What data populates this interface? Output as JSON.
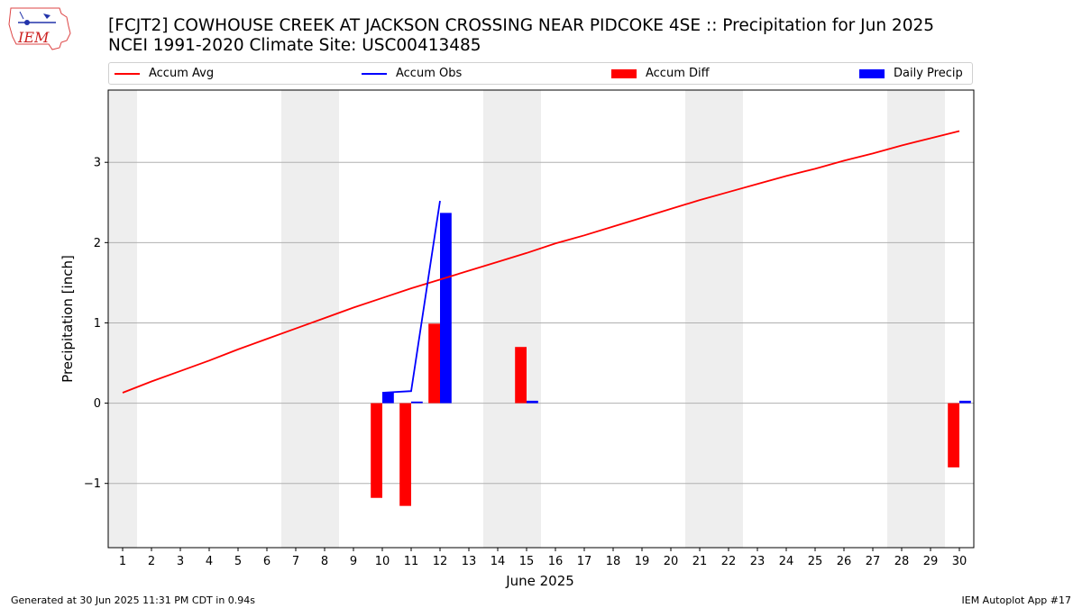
{
  "title_line1": "[FCJT2] COWHOUSE CREEK AT JACKSON CROSSING NEAR PIDCOKE 4SE :: Precipitation for Jun 2025",
  "title_line2": "NCEI 1991-2020 Climate Site: USC00413485",
  "logo_text": "IEM",
  "footer_left": "Generated at 30 Jun 2025 11:31 PM CDT in 0.94s",
  "footer_right": "IEM Autoplot App #17",
  "colors": {
    "avg": "#ff0000",
    "obs": "#0000ff",
    "diff": "#ff0000",
    "daily": "#0000ff",
    "weekend": "#eeeeee",
    "grid": "#b0b0b0"
  },
  "chart_data": {
    "type": "bar",
    "xlabel": "June 2025",
    "ylabel": "Precipitation [inch]",
    "xlim": [
      0.5,
      30.5
    ],
    "ylim": [
      -1.8,
      3.9
    ],
    "x_ticks": [
      1,
      2,
      3,
      4,
      5,
      6,
      7,
      8,
      9,
      10,
      11,
      12,
      13,
      14,
      15,
      16,
      17,
      18,
      19,
      20,
      21,
      22,
      23,
      24,
      25,
      26,
      27,
      28,
      29,
      30
    ],
    "y_ticks": [
      -1,
      0,
      1,
      2,
      3
    ],
    "grid": "horizontal",
    "legend_placement": "top",
    "weekend_days": [
      1,
      7,
      8,
      14,
      15,
      21,
      22,
      28,
      29
    ],
    "series": [
      {
        "name": "Accum Avg",
        "kind": "line",
        "x": [
          1,
          2,
          3,
          4,
          5,
          6,
          7,
          8,
          9,
          10,
          11,
          12,
          13,
          14,
          15,
          16,
          17,
          18,
          19,
          20,
          21,
          22,
          23,
          24,
          25,
          26,
          27,
          28,
          29,
          30
        ],
        "values": [
          0.13,
          0.27,
          0.4,
          0.53,
          0.67,
          0.8,
          0.93,
          1.06,
          1.19,
          1.31,
          1.43,
          1.54,
          1.65,
          1.76,
          1.87,
          1.99,
          2.09,
          2.2,
          2.31,
          2.42,
          2.53,
          2.63,
          2.73,
          2.83,
          2.92,
          3.02,
          3.11,
          3.21,
          3.3,
          3.39
        ]
      },
      {
        "name": "Accum Obs",
        "kind": "line",
        "x": [
          10,
          11,
          12
        ],
        "values": [
          0.13,
          0.15,
          2.52
        ]
      },
      {
        "name": "Accum Diff",
        "kind": "bar",
        "x": [
          10,
          11,
          12,
          15,
          30
        ],
        "values": [
          -1.18,
          -1.28,
          0.99,
          0.7,
          -0.8
        ]
      },
      {
        "name": "Daily Precip",
        "kind": "bar",
        "x": [
          10,
          11,
          12,
          15,
          30
        ],
        "values": [
          0.13,
          0.02,
          2.37,
          0.03,
          0.03
        ]
      }
    ]
  }
}
